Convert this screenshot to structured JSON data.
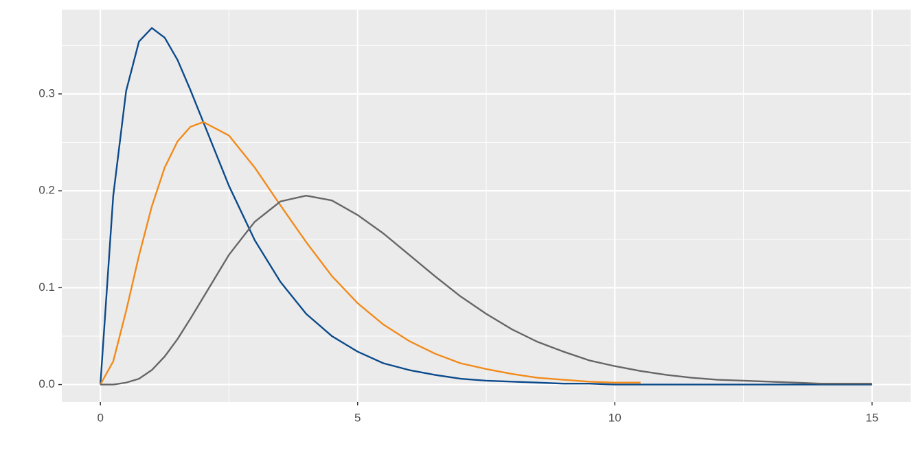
{
  "chart_data": {
    "type": "line",
    "x": [
      0,
      0.25,
      0.5,
      0.75,
      1,
      1.25,
      1.5,
      1.75,
      2,
      2.5,
      3,
      3.5,
      4,
      4.5,
      5,
      5.5,
      6,
      6.5,
      7,
      7.5,
      8,
      8.5,
      9,
      9.5,
      10,
      10.5,
      11,
      11.5,
      12,
      12.5,
      13,
      13.5,
      14,
      14.5,
      15
    ],
    "series": [
      {
        "color": "#0b4a8b",
        "values": [
          0,
          0.195,
          0.303,
          0.354,
          0.368,
          0.358,
          0.335,
          0.304,
          0.271,
          0.205,
          0.149,
          0.106,
          0.073,
          0.05,
          0.034,
          0.022,
          0.015,
          0.01,
          0.006,
          0.004,
          0.003,
          0.002,
          0.001,
          0.001,
          0,
          0,
          0,
          0,
          0,
          0,
          0,
          0,
          0,
          0,
          0
        ]
      },
      {
        "color": "#f28a1a",
        "values": [
          0,
          0.024,
          0.076,
          0.133,
          0.184,
          0.224,
          0.251,
          0.266,
          0.271,
          0.257,
          0.224,
          0.185,
          0.147,
          0.112,
          0.084,
          0.062,
          0.045,
          0.032,
          0.022,
          0.016,
          0.011,
          0.007,
          0.005,
          0.003,
          0.002,
          0.002,
          null,
          null,
          null,
          null,
          null,
          null,
          null,
          null,
          null
        ]
      },
      {
        "color": "#666666",
        "values": [
          0,
          0,
          0.002,
          0.006,
          0.015,
          0.029,
          0.047,
          0.068,
          0.09,
          0.134,
          0.168,
          0.189,
          0.195,
          0.19,
          0.175,
          0.156,
          0.134,
          0.112,
          0.091,
          0.073,
          0.057,
          0.044,
          0.034,
          0.025,
          0.019,
          0.014,
          0.01,
          0.007,
          0.005,
          0.004,
          0.003,
          0.002,
          0.001,
          0.001,
          0.001
        ]
      }
    ],
    "xlim": [
      -0.75,
      15.75
    ],
    "xticks": [
      0,
      5,
      10,
      15
    ],
    "xminor": [
      2.5,
      7.5,
      12.5
    ],
    "ylim": [
      -0.018,
      0.387
    ],
    "yticks": [
      {
        "value": 0,
        "label": "0.0"
      },
      {
        "value": 0.1,
        "label": "0.1"
      },
      {
        "value": 0.2,
        "label": "0.2"
      },
      {
        "value": 0.3,
        "label": "0.3"
      }
    ],
    "yminor": [
      0.05,
      0.15,
      0.25,
      0.35
    ],
    "grid": true
  }
}
